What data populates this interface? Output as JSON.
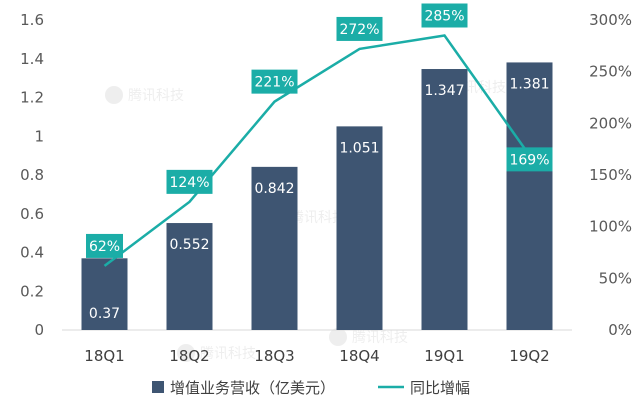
{
  "chart_data": {
    "type": "bar",
    "categories": [
      "18Q1",
      "18Q2",
      "18Q3",
      "18Q4",
      "19Q1",
      "19Q2"
    ],
    "series": [
      {
        "name": "增值业务营收（亿美元）",
        "type": "bar",
        "axis": "left",
        "color": "#3E5572",
        "values": [
          0.37,
          0.552,
          0.842,
          1.051,
          1.347,
          1.381
        ],
        "labels": [
          "0.37",
          "0.552",
          "0.842",
          "1.051",
          "1.347",
          "1.381"
        ]
      },
      {
        "name": "同比增幅",
        "type": "line",
        "axis": "right",
        "color": "#1BADA7",
        "values": [
          62,
          124,
          221,
          272,
          285,
          169
        ],
        "labels": [
          "62%",
          "124%",
          "221%",
          "272%",
          "285%",
          "169%"
        ]
      }
    ],
    "y_left": {
      "min": 0,
      "max": 1.6,
      "ticks": [
        "0",
        "0.2",
        "0.4",
        "0.6",
        "0.8",
        "1",
        "1.2",
        "1.4",
        "1.6"
      ]
    },
    "y_right": {
      "min": 0,
      "max": 300,
      "ticks": [
        "0%",
        "50%",
        "100%",
        "150%",
        "200%",
        "250%",
        "300%"
      ]
    },
    "grid": false,
    "legend_position": "bottom",
    "watermark": "腾讯科技"
  }
}
